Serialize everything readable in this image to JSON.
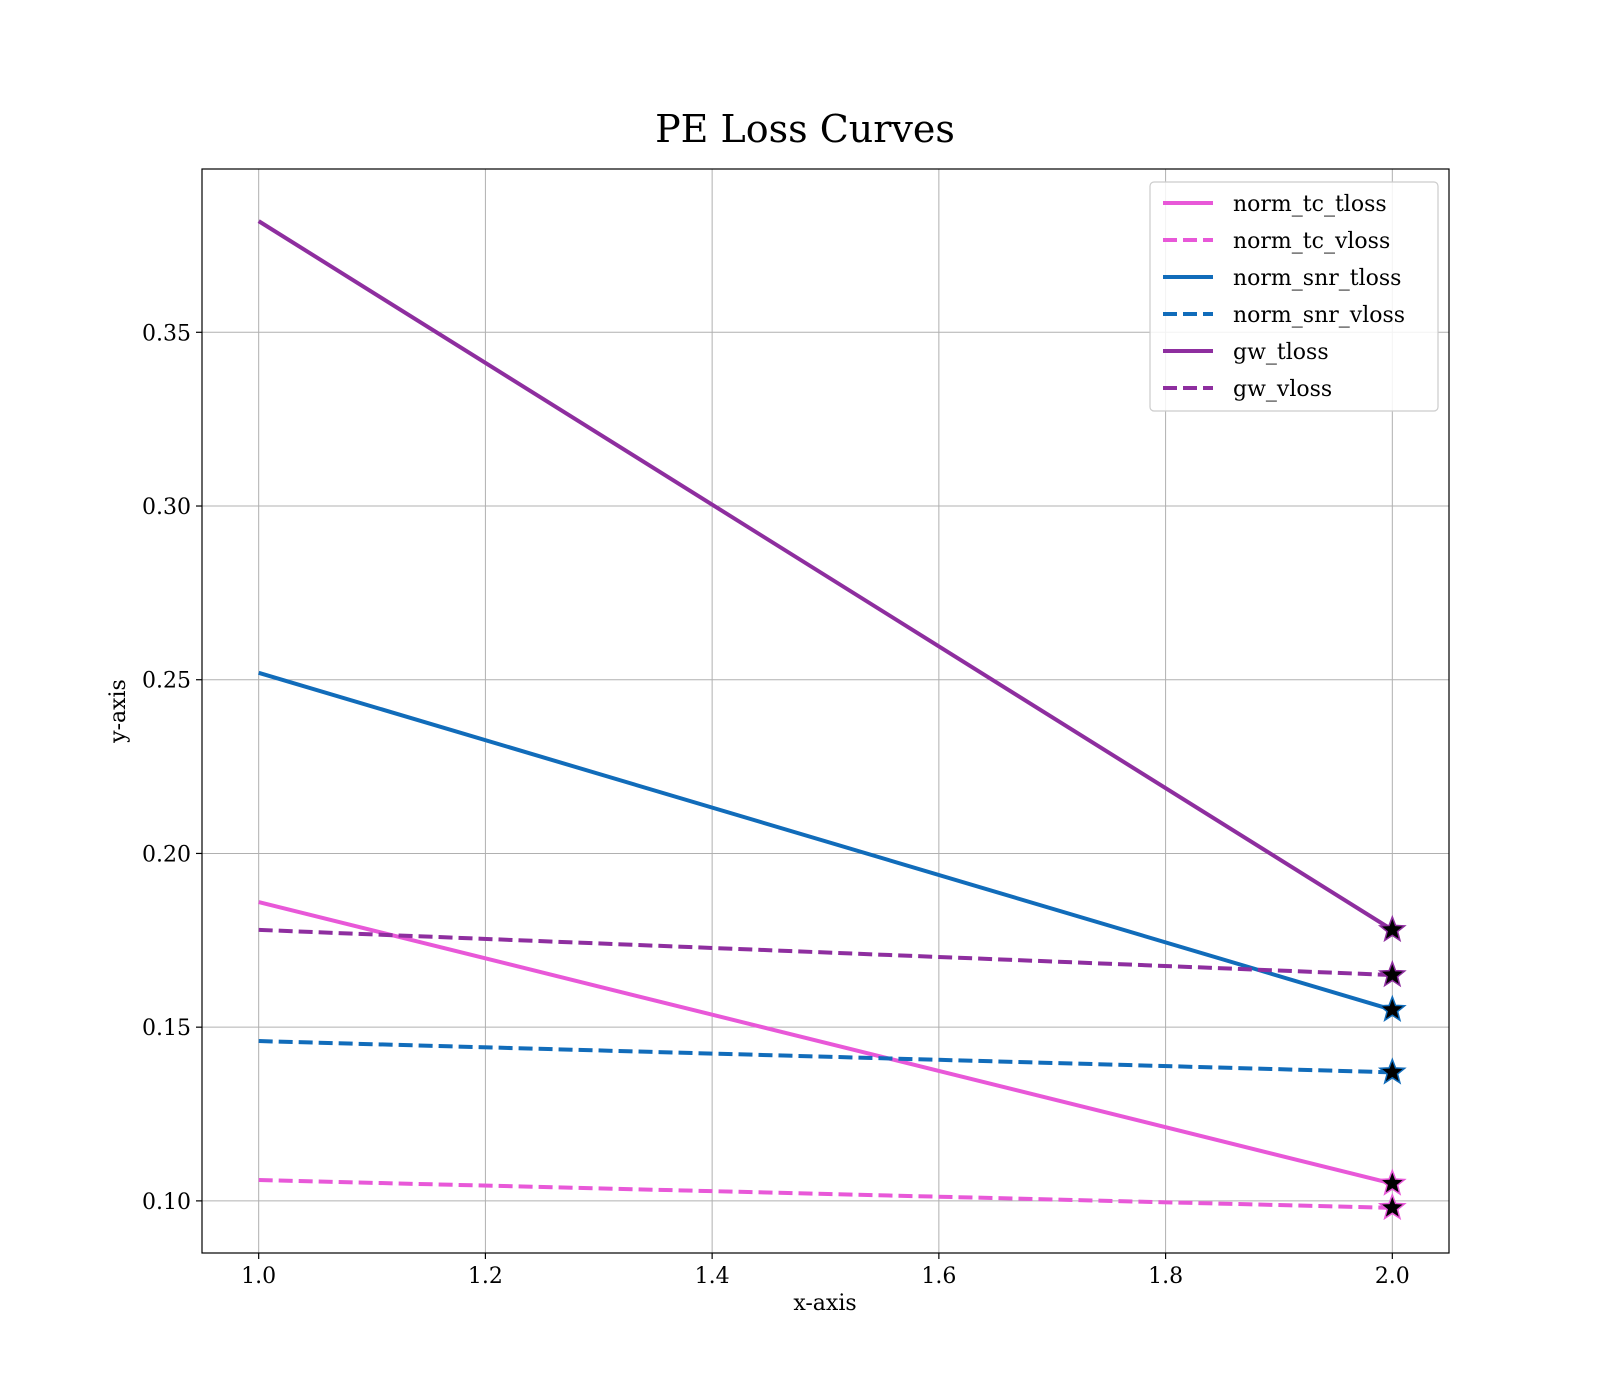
{
  "chart_data": {
    "type": "line",
    "title": "PE Loss Curves",
    "xlabel": "x-axis",
    "ylabel": "y-axis",
    "xlim": [
      0.95,
      2.05
    ],
    "ylim": [
      0.085,
      0.397
    ],
    "xticks": [
      1.0,
      1.2,
      1.4,
      1.6,
      1.8,
      2.0
    ],
    "xtick_labels": [
      "1.0",
      "1.2",
      "1.4",
      "1.6",
      "1.8",
      "2.0"
    ],
    "yticks": [
      0.1,
      0.15,
      0.2,
      0.25,
      0.3,
      0.35
    ],
    "ytick_labels": [
      "0.10",
      "0.15",
      "0.20",
      "0.25",
      "0.30",
      "0.35"
    ],
    "grid": true,
    "legend_position": "top-right",
    "marker_at_last_point": "star",
    "series": [
      {
        "name": "norm_tc_tloss",
        "x": [
          1.0,
          2.0
        ],
        "values": [
          0.186,
          0.105
        ],
        "color": "#e858d8",
        "style": "solid"
      },
      {
        "name": "norm_tc_vloss",
        "x": [
          1.0,
          2.0
        ],
        "values": [
          0.106,
          0.098
        ],
        "color": "#e858d8",
        "style": "dashed"
      },
      {
        "name": "norm_snr_tloss",
        "x": [
          1.0,
          2.0
        ],
        "values": [
          0.252,
          0.155
        ],
        "color": "#116cba",
        "style": "solid"
      },
      {
        "name": "norm_snr_vloss",
        "x": [
          1.0,
          2.0
        ],
        "values": [
          0.146,
          0.137
        ],
        "color": "#116cba",
        "style": "dashed"
      },
      {
        "name": "gw_tloss",
        "x": [
          1.0,
          2.0
        ],
        "values": [
          0.382,
          0.178
        ],
        "color": "#8e2e9f",
        "style": "solid"
      },
      {
        "name": "gw_vloss",
        "x": [
          1.0,
          2.0
        ],
        "values": [
          0.178,
          0.165
        ],
        "color": "#8e2e9f",
        "style": "dashed"
      }
    ]
  }
}
